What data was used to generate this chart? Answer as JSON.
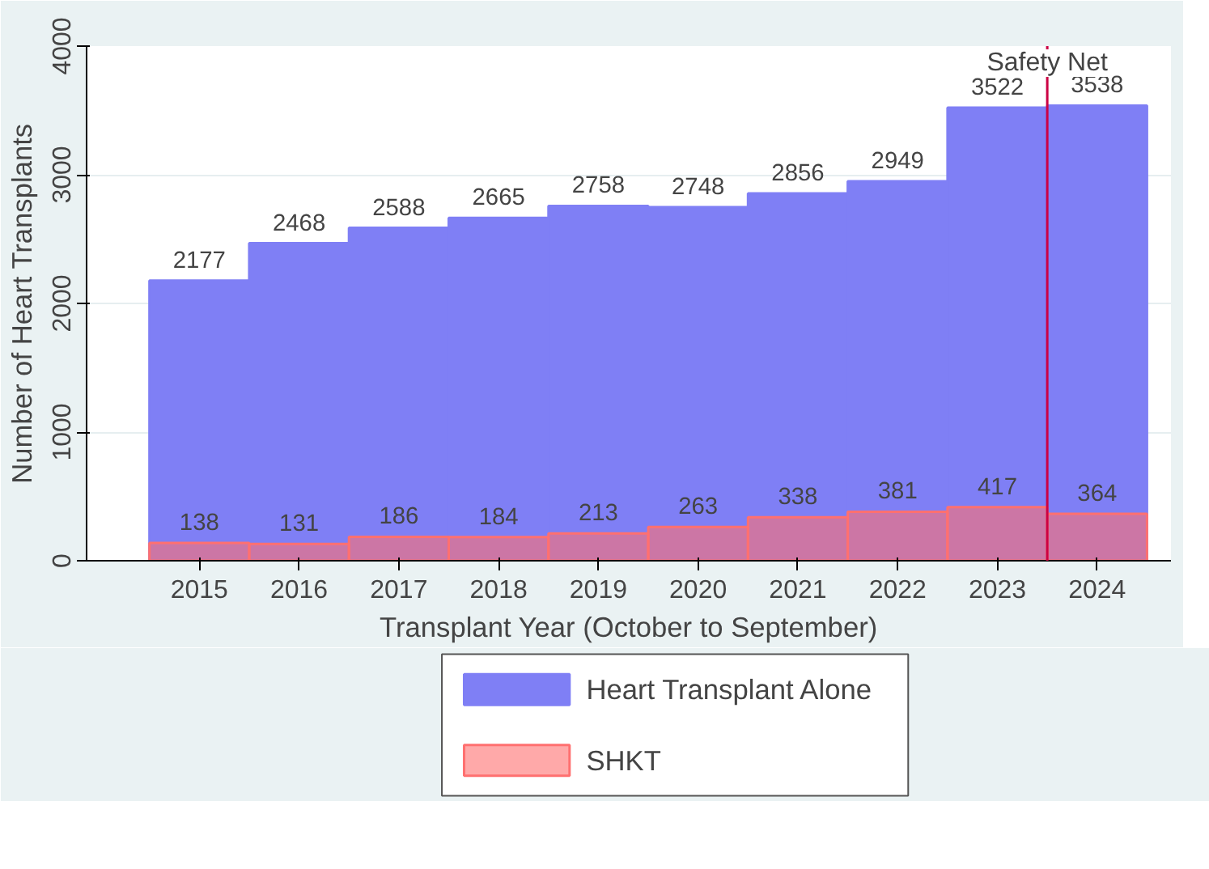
{
  "chart_data": {
    "type": "bar",
    "xlabel": "Transplant Year (October to September)",
    "ylabel": "Number of Heart Transplants",
    "x": [
      2015,
      2016,
      2017,
      2018,
      2019,
      2020,
      2021,
      2022,
      2023,
      2024
    ],
    "series": [
      {
        "name": "Heart Transplant Alone",
        "color": "#7f7ff5",
        "values": [
          2177,
          2468,
          2588,
          2665,
          2758,
          2748,
          2856,
          2949,
          3522,
          3538
        ]
      },
      {
        "name": "SHKT",
        "color": "#ff7070",
        "values": [
          138,
          131,
          186,
          184,
          213,
          263,
          338,
          381,
          417,
          364
        ]
      }
    ],
    "xlim": [
      2013.87,
      2024.74
    ],
    "xticks": [
      2015,
      2016,
      2017,
      2018,
      2019,
      2020,
      2021,
      2022,
      2023,
      2024
    ],
    "ylim": [
      0,
      4000
    ],
    "yticks": [
      0,
      1000,
      2000,
      3000,
      4000
    ],
    "ref_lines": [
      {
        "axis": "x",
        "value": 2023.5,
        "label": "Safety Net",
        "color": "#cc0044"
      }
    ],
    "data_labels": true,
    "grid": "y",
    "legend": "bottom"
  }
}
